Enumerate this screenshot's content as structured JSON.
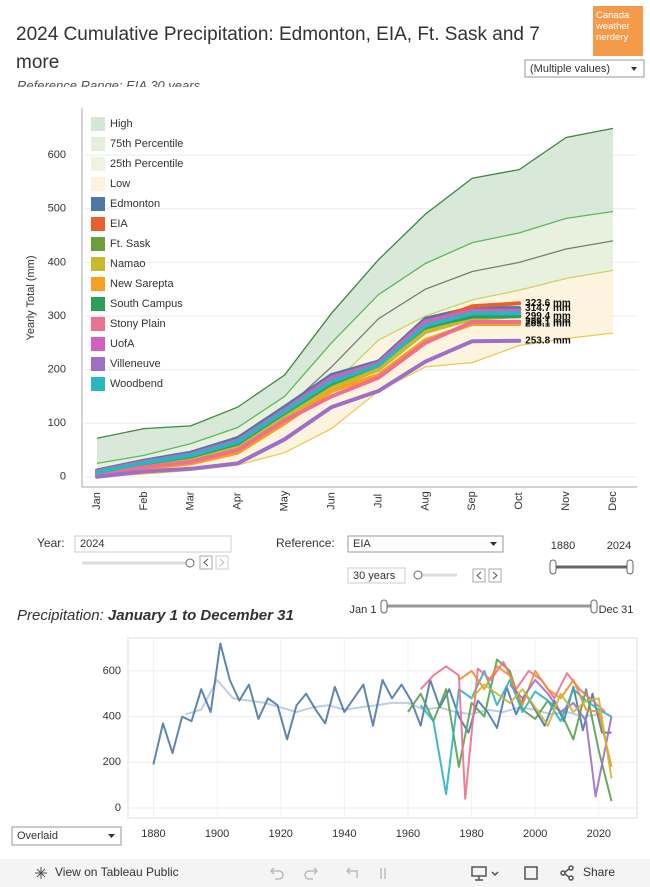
{
  "header": {
    "title": "2024 Cumulative Precipitation: Edmonton, EIA, Ft. Sask and 7 more",
    "subtitle": "Reference Range: EIA 30 years",
    "logo": [
      "Canada",
      "weather",
      "nerdery"
    ],
    "filter": "(Multiple values)"
  },
  "chart_data": [
    {
      "type": "line",
      "y_label": "Yearly Total (mm)",
      "categories": [
        "Jan",
        "Feb",
        "Mar",
        "Apr",
        "May",
        "Jun",
        "Jul",
        "Aug",
        "Sep",
        "Oct",
        "Nov",
        "Dec"
      ],
      "ylim": [
        -19,
        688
      ],
      "yticks": [
        0,
        100,
        200,
        300,
        400,
        500,
        600
      ],
      "grid": true,
      "legend": "top-left",
      "bands": [
        {
          "name": "High",
          "color": "#3b8a3b",
          "fill": "#d4e6d5",
          "values": [
            72,
            90,
            95,
            130,
            190,
            305,
            405,
            490,
            557,
            573,
            633,
            650
          ]
        },
        {
          "name": "75th Percentile",
          "color": "#5cb85c",
          "fill": "#e4efd9",
          "values": [
            25,
            40,
            62,
            92,
            150,
            250,
            340,
            398,
            437,
            455,
            482,
            495
          ]
        },
        {
          "name": "25th Percentile",
          "color": "#cbd26a",
          "fill": "#eef4df",
          "values": [
            5,
            18,
            30,
            50,
            100,
            170,
            255,
            300,
            330,
            348,
            370,
            385
          ]
        },
        {
          "name": "Low",
          "color": "#f0c850",
          "fill": "#fdf3dc",
          "values": [
            0,
            5,
            12,
            22,
            45,
            90,
            160,
            205,
            213,
            245,
            258,
            268
          ]
        }
      ],
      "reference_line": {
        "color": "#7a7a7a",
        "values": [
          12,
          28,
          45,
          75,
          125,
          205,
          295,
          350,
          383,
          400,
          425,
          440
        ]
      },
      "series": [
        {
          "name": "Edmonton",
          "color": "#4e79a7",
          "values": [
            12,
            30,
            45,
            72,
            130,
            190,
            215,
            295,
            315,
            314.7,
            null,
            null
          ],
          "end_label": "314.7 mm"
        },
        {
          "name": "EIA",
          "color": "#e8602c",
          "values": [
            8,
            27,
            40,
            65,
            125,
            180,
            210,
            285,
            318,
            323.6,
            null,
            null
          ],
          "end_label": "323.6 mm"
        },
        {
          "name": "Ft. Sask",
          "color": "#6a9f3a",
          "values": [
            5,
            22,
            35,
            60,
            115,
            170,
            205,
            275,
            300,
            305,
            null,
            null
          ]
        },
        {
          "name": "Namao",
          "color": "#c9b92c",
          "values": [
            5,
            20,
            33,
            55,
            110,
            165,
            200,
            270,
            295,
            300,
            null,
            null
          ]
        },
        {
          "name": "New Sarepta",
          "color": "#f7a020",
          "values": [
            3,
            15,
            25,
            45,
            100,
            160,
            190,
            255,
            285,
            285.1,
            null,
            null
          ],
          "end_label": "285.1 mm"
        },
        {
          "name": "South Campus",
          "color": "#2ca05a",
          "values": [
            8,
            25,
            38,
            62,
            120,
            175,
            210,
            280,
            299,
            299.4,
            null,
            null
          ],
          "end_label": "299.4 mm"
        },
        {
          "name": "Stony Plain",
          "color": "#ef6f8f",
          "values": [
            4,
            18,
            28,
            50,
            105,
            150,
            185,
            250,
            289,
            289.1,
            null,
            null
          ],
          "end_label": "289.1 mm"
        },
        {
          "name": "UofA",
          "color": "#d55fbd",
          "values": [
            10,
            28,
            42,
            68,
            125,
            185,
            212,
            290,
            310,
            310,
            null,
            null
          ]
        },
        {
          "name": "Villeneuve",
          "color": "#9e6ec8",
          "values": [
            0,
            10,
            15,
            25,
            70,
            130,
            160,
            215,
            253,
            253.8,
            null,
            null
          ],
          "end_label": "253.8 mm"
        },
        {
          "name": "Woodbend",
          "color": "#2bb5c0",
          "values": [
            8,
            26,
            40,
            65,
            122,
            178,
            208,
            282,
            305,
            305,
            null,
            null
          ]
        }
      ]
    },
    {
      "type": "line",
      "title": "Precipitation:",
      "subtitle": "January 1 to December 31",
      "xlim": [
        1872,
        2032
      ],
      "xticks": [
        1880,
        1900,
        1920,
        1940,
        1960,
        1980,
        2000,
        2020
      ],
      "ylim": [
        -44,
        744
      ],
      "yticks": [
        0,
        200,
        400,
        600
      ],
      "grid": true,
      "series": [
        {
          "color": "#b7c9e6",
          "x": [
            1890,
            1895,
            1900,
            1905,
            1910,
            1915,
            1920,
            1925,
            1930,
            1935,
            1940,
            1945,
            1950,
            1955,
            1960,
            1965,
            1970,
            1975,
            1980,
            1985,
            1990,
            1995,
            2000,
            2005,
            2010,
            2015,
            2020
          ],
          "values": [
            410,
            430,
            560,
            480,
            470,
            460,
            440,
            420,
            440,
            450,
            430,
            440,
            450,
            460,
            460,
            430,
            440,
            420,
            410,
            430,
            420,
            440,
            430,
            410,
            420,
            400,
            410
          ]
        },
        {
          "color": "#4e79a7",
          "x": [
            1880,
            1883,
            1886,
            1889,
            1892,
            1895,
            1898,
            1901,
            1904,
            1907,
            1910,
            1913,
            1916,
            1919,
            1922,
            1925,
            1928,
            1931,
            1934,
            1937,
            1940,
            1943,
            1946,
            1949,
            1952,
            1955,
            1958,
            1961,
            1964,
            1967,
            1970,
            1973,
            1976,
            1979,
            1982,
            1985,
            1988,
            1991,
            1994,
            1997,
            2000,
            2003,
            2006,
            2009,
            2012,
            2015,
            2018,
            2021,
            2024
          ],
          "values": [
            190,
            370,
            240,
            400,
            380,
            520,
            420,
            720,
            560,
            470,
            540,
            390,
            480,
            450,
            300,
            450,
            500,
            430,
            370,
            530,
            420,
            480,
            540,
            360,
            560,
            480,
            540,
            470,
            360,
            560,
            440,
            520,
            400,
            330,
            470,
            420,
            350,
            530,
            410,
            500,
            430,
            360,
            470,
            380,
            530,
            340,
            500,
            330,
            330
          ]
        },
        {
          "color": "#59a14f",
          "x": [
            1960,
            1964,
            1968,
            1972,
            1976,
            1980,
            1984,
            1988,
            1992,
            1996,
            2000,
            2004,
            2008,
            2012,
            2016,
            2020,
            2024
          ],
          "values": [
            420,
            500,
            380,
            520,
            180,
            460,
            400,
            650,
            600,
            430,
            390,
            470,
            420,
            300,
            520,
            250,
            30
          ]
        },
        {
          "color": "#2bb5c0",
          "x": [
            1964,
            1968,
            1972,
            1976,
            1980,
            1984,
            1988,
            1992,
            1996,
            2000,
            2004,
            2008,
            2012,
            2016,
            2020,
            2024
          ],
          "values": [
            450,
            380,
            60,
            520,
            480,
            600,
            450,
            560,
            420,
            510,
            470,
            380,
            520,
            470,
            430,
            400
          ]
        },
        {
          "color": "#ef6f8f",
          "x": [
            1964,
            1968,
            1972,
            1976,
            1978,
            1982,
            1986,
            1990,
            1994,
            1998,
            2002,
            2006,
            2010,
            2014,
            2018,
            2022
          ],
          "values": [
            520,
            580,
            620,
            580,
            40,
            610,
            560,
            640,
            520,
            600,
            560,
            480,
            590,
            520,
            470,
            420
          ]
        },
        {
          "color": "#f28e2b",
          "x": [
            1976,
            1980,
            1984,
            1988,
            1992,
            1996,
            2000,
            2004,
            2008,
            2012,
            2016,
            2020,
            2024
          ],
          "values": [
            560,
            600,
            520,
            620,
            580,
            450,
            600,
            520,
            480,
            560,
            430,
            420,
            180
          ]
        },
        {
          "color": "#9e6ec8",
          "x": [
            1992,
            1996,
            2000,
            2004,
            2008,
            2012,
            2016,
            2019,
            2024
          ],
          "values": [
            540,
            480,
            560,
            500,
            420,
            460,
            380,
            50,
            400
          ]
        },
        {
          "color": "#c9b92c",
          "x": [
            1980,
            1984,
            1988,
            1992,
            1996,
            2000,
            2004,
            2008,
            2012,
            2016,
            2020,
            2024
          ],
          "values": [
            480,
            540,
            500,
            460,
            520,
            440,
            360,
            500,
            420,
            470,
            480,
            130
          ]
        }
      ]
    }
  ],
  "controls": {
    "year_label": "Year:",
    "year": "2024",
    "reference_label": "Reference:",
    "reference": "EIA",
    "span": "30 years",
    "range_start": "1880",
    "range_end": "2024",
    "day_start": "Jan 1",
    "day_end": "Dec 31",
    "mode": "Overlaid"
  },
  "footer": {
    "view": "View on Tableau Public",
    "share": "Share"
  }
}
